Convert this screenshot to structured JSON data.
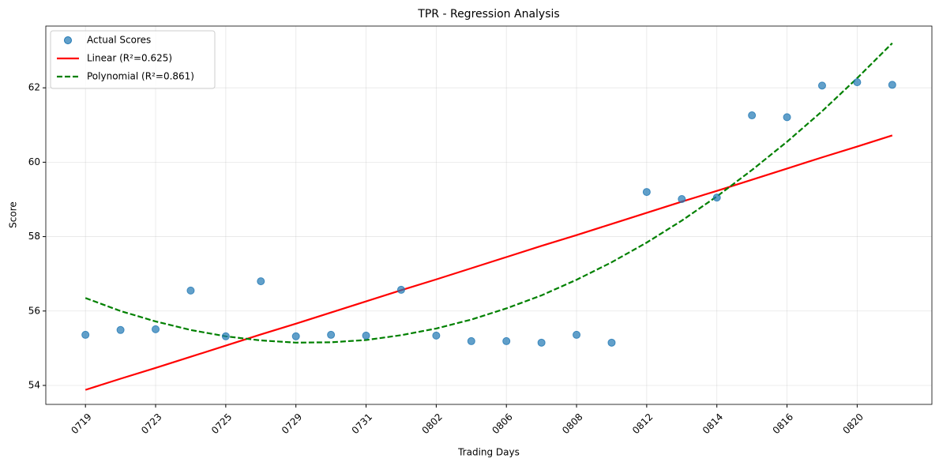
{
  "chart_data": {
    "type": "scatter",
    "title": "TPR - Regression Analysis",
    "x_label": "Trading Days",
    "y_label": "Score",
    "categories": [
      "0719",
      null,
      "0723",
      null,
      "0725",
      null,
      "0729",
      null,
      "0731",
      null,
      "0802",
      null,
      "0806",
      null,
      "0808",
      null,
      "0812",
      null,
      "0814",
      null,
      "0816",
      null,
      "0820",
      null
    ],
    "series": [
      {
        "name": "Actual Scores",
        "color": "#1f77b4",
        "mark": "point",
        "values": [
          55.36,
          55.49,
          55.51,
          56.55,
          55.32,
          56.8,
          55.32,
          55.36,
          55.34,
          56.57,
          55.34,
          55.19,
          55.19,
          55.15,
          55.36,
          55.15,
          59.2,
          59.01,
          59.05,
          61.26,
          61.21,
          62.06,
          62.15,
          62.08
        ]
      },
      {
        "name": "Linear (R²=0.625)",
        "color": "#ff0000",
        "mark": "line",
        "dashed": false,
        "values": [
          53.88,
          54.18,
          54.47,
          54.77,
          55.07,
          55.37,
          55.66,
          55.96,
          56.26,
          56.56,
          56.85,
          57.15,
          57.45,
          57.75,
          58.04,
          58.34,
          58.64,
          58.94,
          59.23,
          59.53,
          59.83,
          60.13,
          60.42,
          60.72
        ]
      },
      {
        "name": "Polynomial (R²=0.861)",
        "color": "#008000",
        "mark": "line",
        "dashed": true,
        "values": [
          56.35,
          56.0,
          55.72,
          55.49,
          55.32,
          55.21,
          55.15,
          55.16,
          55.22,
          55.35,
          55.53,
          55.77,
          56.07,
          56.42,
          56.84,
          57.31,
          57.84,
          58.43,
          59.08,
          59.79,
          60.55,
          61.37,
          62.26,
          63.2
        ]
      }
    ],
    "ylim": [
      53.49,
      63.66
    ],
    "yticks": [
      54,
      56,
      58,
      60,
      62
    ],
    "grid": true,
    "legend": "upper left"
  }
}
